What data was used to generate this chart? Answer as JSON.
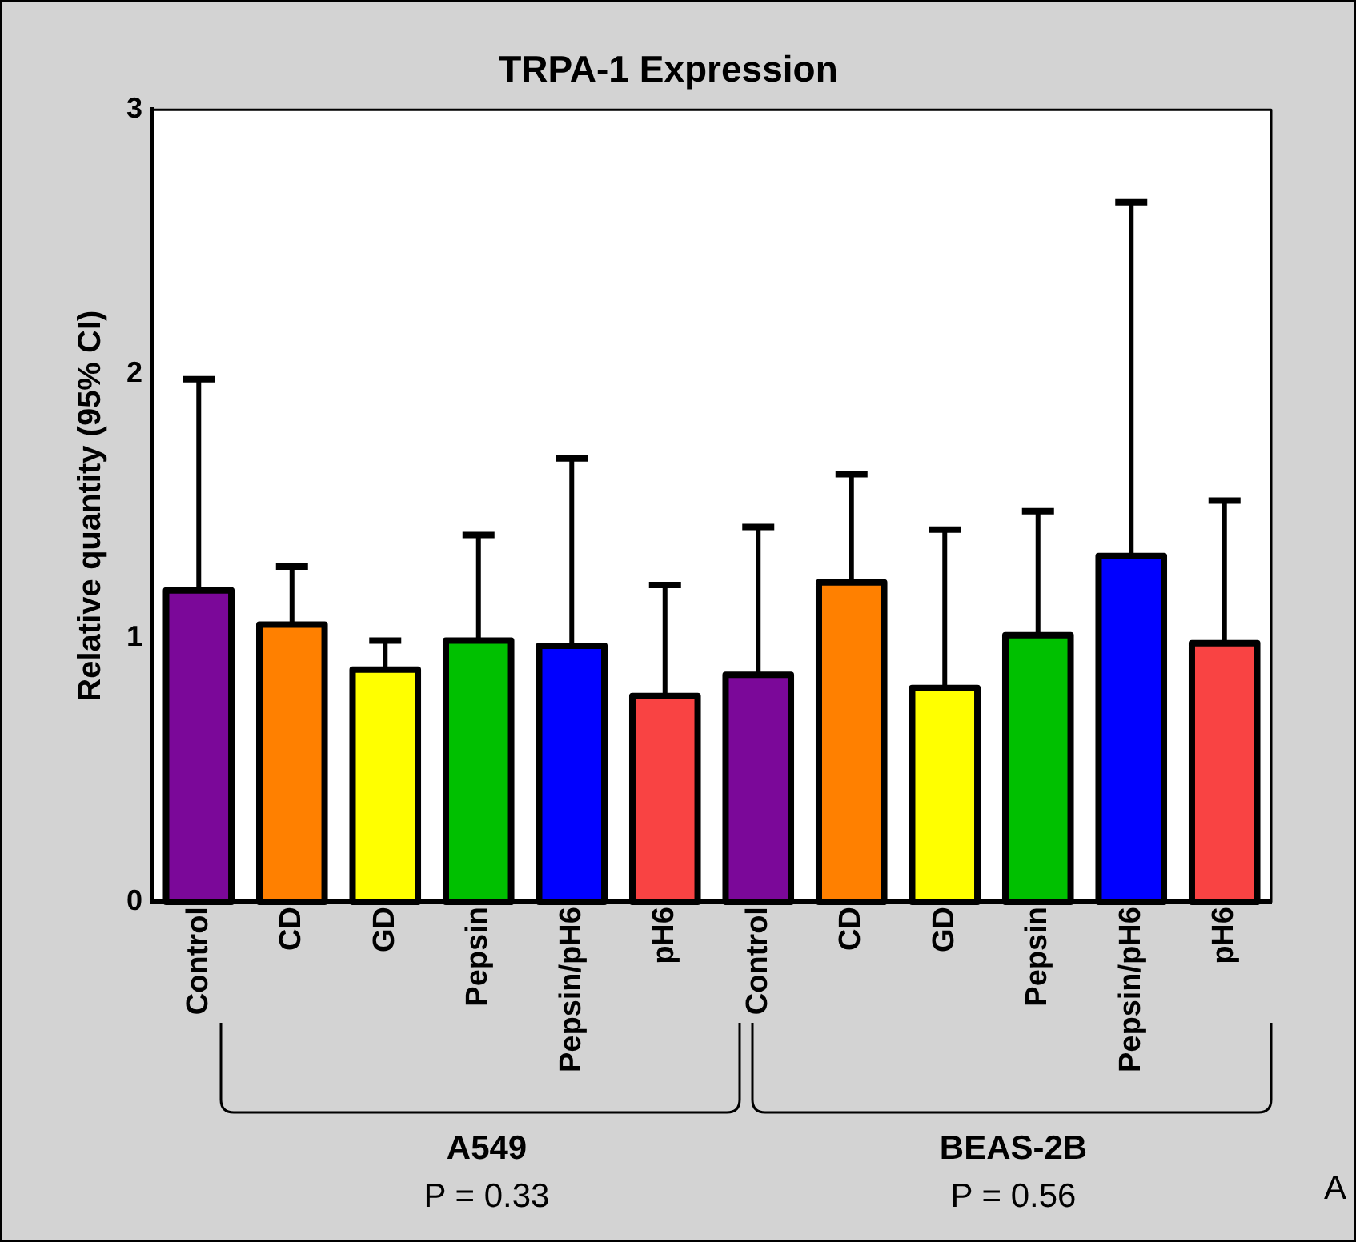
{
  "chart_data": {
    "type": "bar",
    "title": "TRPA-1 Expression",
    "ylabel": "Relative quantity (95% CI)",
    "categories": [
      "Control",
      "CD",
      "GD",
      "Pepsin",
      "Pepsin/pH6",
      "pH6",
      "Control",
      "CD",
      "GD",
      "Pepsin",
      "Pepsin/pH6",
      "pH6"
    ],
    "values": [
      1.18,
      1.05,
      0.88,
      0.99,
      0.97,
      0.78,
      0.86,
      1.21,
      0.81,
      1.01,
      1.31,
      0.98
    ],
    "colors": [
      "#7b0899",
      "#ff8000",
      "#ffff00",
      "#00c000",
      "#0000ff",
      "#f94343",
      "#7b0899",
      "#ff8000",
      "#ffff00",
      "#00c000",
      "#0000ff",
      "#f94343"
    ],
    "errors": [
      [
        1.18,
        1.98
      ],
      [
        1.05,
        1.27
      ],
      [
        0.88,
        0.99
      ],
      [
        0.99,
        1.39
      ],
      [
        0.97,
        1.68
      ],
      [
        0.78,
        1.2
      ],
      [
        0.86,
        1.42
      ],
      [
        1.21,
        1.62
      ],
      [
        0.81,
        1.41
      ],
      [
        1.01,
        1.48
      ],
      [
        1.31,
        2.65
      ],
      [
        0.98,
        1.52
      ]
    ],
    "ylim": [
      0,
      3
    ],
    "yticks": [
      0,
      1,
      2,
      3
    ],
    "annotations": [
      "A549",
      "P = 0.33",
      "BEAS-2B",
      "P = 0.56",
      "A"
    ]
  }
}
